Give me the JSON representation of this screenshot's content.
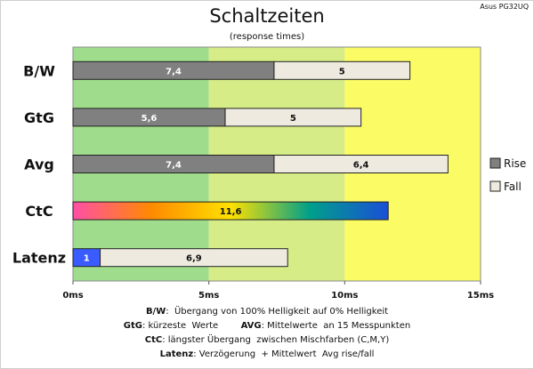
{
  "device": "Asus PG32UQ",
  "chart_data": {
    "type": "bar",
    "orientation": "horizontal",
    "stacked": true,
    "title": "Schaltzeiten",
    "subtitle": "(response times)",
    "categories": [
      "B/W",
      "GtG",
      "Avg",
      "CtC",
      "Latenz"
    ],
    "series": [
      {
        "name": "Rise",
        "values": [
          7.4,
          5.6,
          7.4,
          null,
          1
        ],
        "color": "#808080"
      },
      {
        "name": "Fall",
        "values": [
          5,
          5,
          6.4,
          null,
          6.9
        ],
        "color": "#eeeae0"
      }
    ],
    "ctc": {
      "value": 11.6,
      "label": "11,6",
      "gradient": [
        "#ff4fa6",
        "#ff8a00",
        "#ffe100",
        "#00a08a",
        "#1a4fd6"
      ]
    },
    "value_labels": {
      "B/W": [
        "7,4",
        "5"
      ],
      "GtG": [
        "5,6",
        "5"
      ],
      "Avg": [
        "7,4",
        "6,4"
      ],
      "Latenz": [
        "1",
        "6,9"
      ]
    },
    "latency_input_color": "#3a5cff",
    "x_ticks": [
      "0ms",
      "5ms",
      "10ms",
      "15ms"
    ],
    "xlim": [
      0,
      15
    ],
    "background_zones": [
      {
        "from": 0,
        "to": 5,
        "color": "#9fdd8d"
      },
      {
        "from": 5,
        "to": 10,
        "color": "#d6ec86"
      },
      {
        "from": 10,
        "to": 15,
        "color": "#fbfb66"
      }
    ],
    "legend": {
      "position": "right",
      "items": [
        "Rise",
        "Fall"
      ]
    },
    "grid": false
  },
  "notes": [
    {
      "parts": [
        {
          "b": "B/W"
        },
        {
          "t": ":  Übergang von 100% Helligkeit auf 0% Helligkeit"
        }
      ]
    },
    {
      "parts": [
        {
          "b": "GtG"
        },
        {
          "t": ": kürzeste  Werte        "
        },
        {
          "b": "AVG"
        },
        {
          "t": ": Mittelwerte  an 15 Messpunkten"
        }
      ]
    },
    {
      "parts": [
        {
          "b": "CtC"
        },
        {
          "t": ": längster Übergang  zwischen Mischfarben (C,M,Y)"
        }
      ]
    },
    {
      "parts": [
        {
          "b": "Latenz"
        },
        {
          "t": ": Verzögerung  + Mittelwert  Avg rise/fall"
        }
      ]
    }
  ]
}
